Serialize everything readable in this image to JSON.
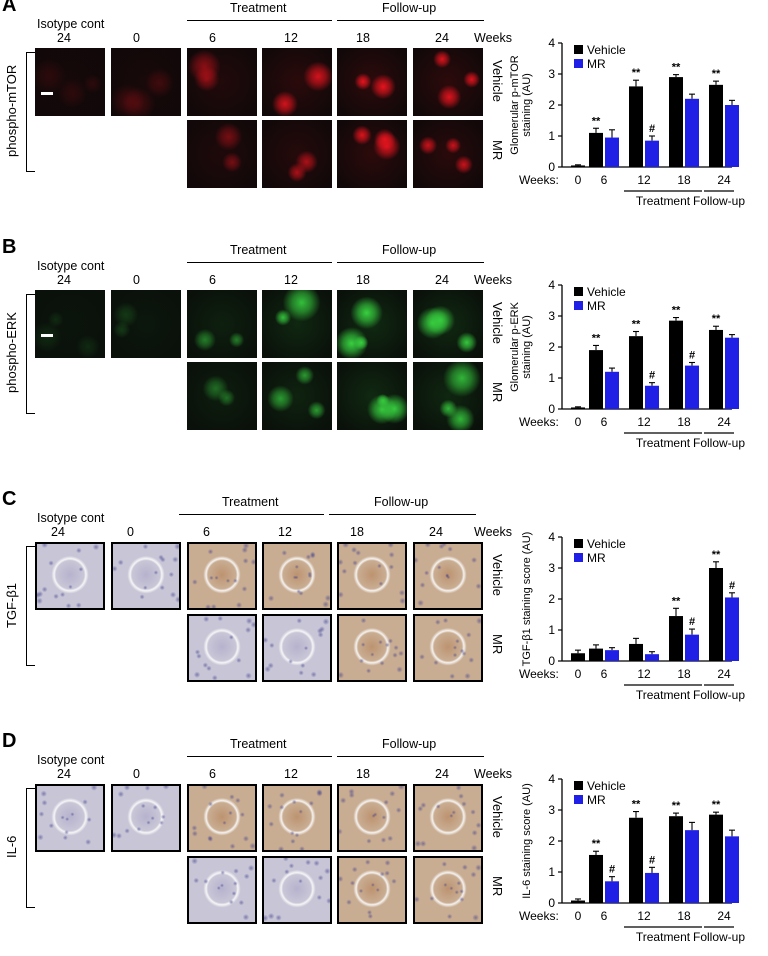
{
  "header": {
    "isotype": "Isotype cont",
    "weeks_label": "Weeks",
    "treatment": "Treatment",
    "followup": "Follow-up",
    "col_weeks": [
      "24",
      "0",
      "6",
      "12",
      "18",
      "24"
    ]
  },
  "row_labels": {
    "vehicle": "Vehicle",
    "mr": "MR"
  },
  "colors": {
    "vehicle": "#000000",
    "mr": "#1f1fe6",
    "red_stain": "#e0141e",
    "green_stain": "#38d040",
    "ihc_bg": "#c7b3a2"
  },
  "panels": [
    {
      "letter": "A",
      "stain": "phospho-mTOR",
      "scale_bar": true
    },
    {
      "letter": "B",
      "stain": "phospho-ERK",
      "scale_bar": true
    },
    {
      "letter": "C",
      "stain": "TGF-β1",
      "scale_bar": false
    },
    {
      "letter": "D",
      "stain": "IL-6",
      "scale_bar": false
    }
  ],
  "chart_data": [
    {
      "type": "bar",
      "ylabel": "Glomerular p-mTOR\nstaining (AU)",
      "ylim": [
        0,
        4
      ],
      "yticks": [
        "0",
        "1",
        "2",
        "3",
        "4"
      ],
      "weeks_axis_label": "Weeks:",
      "categories": [
        "0",
        "6",
        "12",
        "18",
        "24"
      ],
      "group_labels": [
        "Treatment",
        "Follow-up"
      ],
      "legend": [
        "Vehicle",
        "MR"
      ],
      "legend_position": "top-left",
      "series": [
        {
          "name": "Vehicle",
          "values": [
            0.05,
            1.1,
            2.6,
            2.9,
            2.65
          ],
          "errors": [
            0.02,
            0.15,
            0.2,
            0.08,
            0.12
          ],
          "annotations": [
            "",
            "**",
            "**",
            "**",
            "**"
          ]
        },
        {
          "name": "MR",
          "values": [
            null,
            0.95,
            0.85,
            2.2,
            2.0
          ],
          "errors": [
            null,
            0.25,
            0.15,
            0.15,
            0.15
          ],
          "annotations": [
            "",
            "",
            "#",
            "",
            ""
          ]
        }
      ]
    },
    {
      "type": "bar",
      "ylabel": "Glomerular p-ERK\nstaining (AU)",
      "ylim": [
        0,
        4
      ],
      "yticks": [
        "0",
        "1",
        "2",
        "3",
        "4"
      ],
      "weeks_axis_label": "Weeks:",
      "categories": [
        "0",
        "6",
        "12",
        "18",
        "24"
      ],
      "group_labels": [
        "Treatment",
        "Follow-up"
      ],
      "legend": [
        "Vehicle",
        "MR"
      ],
      "legend_position": "top-left",
      "series": [
        {
          "name": "Vehicle",
          "values": [
            0.05,
            1.9,
            2.35,
            2.85,
            2.55
          ],
          "errors": [
            0.02,
            0.15,
            0.15,
            0.1,
            0.12
          ],
          "annotations": [
            "",
            "**",
            "**",
            "**",
            "**"
          ]
        },
        {
          "name": "MR",
          "values": [
            null,
            1.2,
            0.75,
            1.4,
            2.3
          ],
          "errors": [
            null,
            0.12,
            0.1,
            0.1,
            0.1
          ],
          "annotations": [
            "",
            "",
            "#",
            "#",
            ""
          ]
        }
      ]
    },
    {
      "type": "bar",
      "ylabel": "TGF-β1 staining score (AU)",
      "ylim": [
        0,
        4
      ],
      "yticks": [
        "0",
        "1",
        "2",
        "3",
        "4"
      ],
      "weeks_axis_label": "Weeks:",
      "categories": [
        "0",
        "6",
        "12",
        "18",
        "24"
      ],
      "group_labels": [
        "Treatment",
        "Follow-up"
      ],
      "legend": [
        "Vehicle",
        "MR"
      ],
      "legend_position": "top-left",
      "series": [
        {
          "name": "Vehicle",
          "values": [
            0.25,
            0.4,
            0.55,
            1.45,
            3.0
          ],
          "errors": [
            0.1,
            0.12,
            0.18,
            0.25,
            0.2
          ],
          "annotations": [
            "",
            "",
            "",
            "**",
            "**"
          ]
        },
        {
          "name": "MR",
          "values": [
            null,
            0.35,
            0.22,
            0.85,
            2.05
          ],
          "errors": [
            null,
            0.08,
            0.08,
            0.18,
            0.15
          ],
          "annotations": [
            "",
            "",
            "",
            "#",
            "#"
          ]
        }
      ]
    },
    {
      "type": "bar",
      "ylabel": "IL-6 staining score (AU)",
      "ylim": [
        0,
        4
      ],
      "yticks": [
        "0",
        "1",
        "2",
        "3",
        "4"
      ],
      "weeks_axis_label": "Weeks:",
      "categories": [
        "0",
        "6",
        "12",
        "18",
        "24"
      ],
      "group_labels": [
        "Treatment",
        "Follow-up"
      ],
      "legend": [
        "Vehicle",
        "MR"
      ],
      "legend_position": "top-left",
      "series": [
        {
          "name": "Vehicle",
          "values": [
            0.08,
            1.55,
            2.75,
            2.8,
            2.85
          ],
          "errors": [
            0.05,
            0.12,
            0.2,
            0.1,
            0.08
          ],
          "annotations": [
            "",
            "**",
            "**",
            "**",
            "**"
          ]
        },
        {
          "name": "MR",
          "values": [
            null,
            0.7,
            0.97,
            2.35,
            2.15
          ],
          "errors": [
            null,
            0.15,
            0.18,
            0.25,
            0.2
          ],
          "annotations": [
            "",
            "#",
            "#",
            "",
            ""
          ]
        }
      ]
    }
  ]
}
